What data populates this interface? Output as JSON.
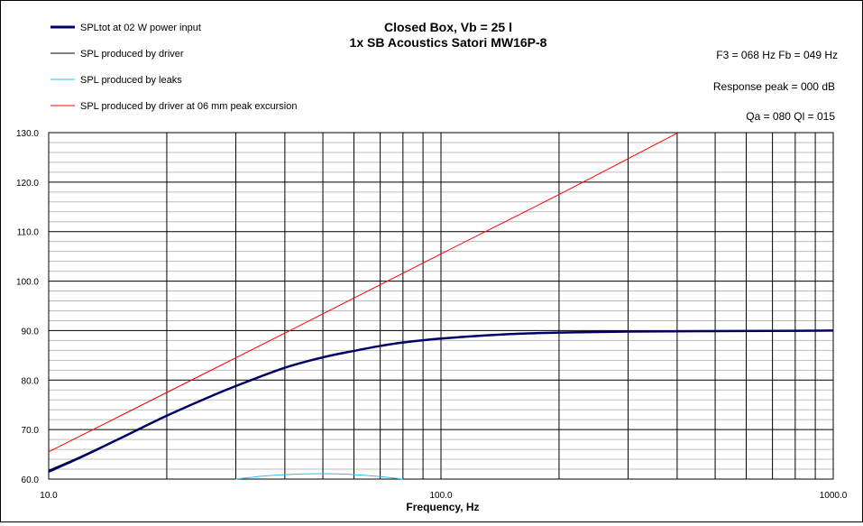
{
  "chart_data": {
    "type": "line",
    "title_lines": [
      "Closed Box, Vb = 25 l",
      "1x SB Acoustics Satori MW16P-8"
    ],
    "info_lines": [
      "F3 = 068 Hz  Fb = 049 Hz",
      "Response peak = 000  dB",
      "Qa = 080   Ql = 015"
    ],
    "xlabel": "Frequency, Hz",
    "ylabel": "",
    "x_scale": "log",
    "xlim": [
      10,
      1000
    ],
    "ylim": [
      60,
      130
    ],
    "x_tick_labels": [
      "10.0",
      "100.0",
      "1000.0"
    ],
    "y_tick_labels": [
      "60.0",
      "70.0",
      "80.0",
      "90.0",
      "100.0",
      "110.0",
      "120.0",
      "130.0"
    ],
    "grid": true,
    "legend_position": "top-left",
    "series": [
      {
        "name": "SPLtot at 02 W power input",
        "color": "#000066",
        "x": [
          10,
          12,
          15,
          20,
          25,
          30,
          40,
          50,
          60,
          70,
          80,
          100,
          150,
          200,
          300,
          500,
          1000
        ],
        "y": [
          61.5,
          64.3,
          68.0,
          72.8,
          76.2,
          78.8,
          82.5,
          84.6,
          85.9,
          86.9,
          87.6,
          88.4,
          89.3,
          89.6,
          89.8,
          89.9,
          90.0
        ]
      },
      {
        "name": "SPL produced by driver",
        "color": "#000000",
        "x": [
          10,
          12,
          15,
          20,
          25,
          30,
          40,
          50,
          60,
          70,
          80,
          100,
          150,
          200,
          300,
          500,
          1000
        ],
        "y": [
          61.8,
          64.5,
          68.1,
          72.9,
          76.3,
          78.9,
          82.5,
          84.6,
          85.9,
          86.9,
          87.6,
          88.4,
          89.3,
          89.6,
          89.8,
          89.9,
          90.0
        ]
      },
      {
        "name": "SPL produced by leaks",
        "color": "#33bbee",
        "x": [
          30,
          35,
          40,
          45,
          50,
          55,
          60,
          70,
          80
        ],
        "y": [
          60.0,
          60.6,
          60.9,
          61.05,
          61.1,
          61.05,
          60.9,
          60.5,
          60.0
        ]
      },
      {
        "name": "SPL produced by driver at 06 mm peak excursion",
        "color": "#ff0000",
        "x": [
          10,
          20,
          40,
          100,
          200,
          400
        ],
        "y": [
          65.5,
          77.5,
          89.5,
          105.5,
          117.5,
          129.9
        ]
      }
    ]
  }
}
